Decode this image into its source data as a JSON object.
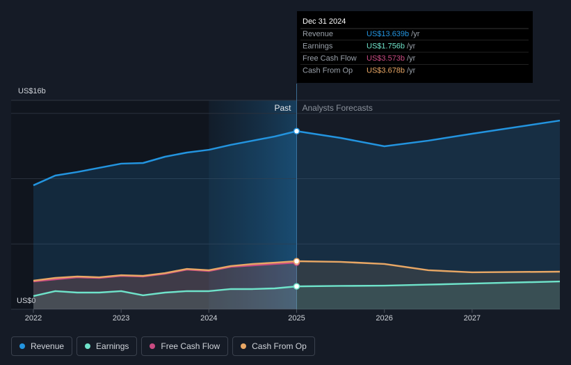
{
  "chart_data": {
    "type": "line",
    "y_label_top": "US$16b",
    "x": [
      2022,
      2022.25,
      2022.5,
      2022.75,
      2023,
      2023.25,
      2023.5,
      2023.75,
      2024,
      2024.25,
      2024.5,
      2024.75,
      2025,
      2025.5,
      2026,
      2026.5,
      2027,
      2028
    ],
    "series": [
      {
        "name": "Revenue",
        "color": "#2394df",
        "values": [
          9.49,
          10.24,
          10.51,
          10.83,
          11.15,
          11.2,
          11.68,
          12.0,
          12.21,
          12.59,
          12.91,
          13.23,
          13.639,
          13.12,
          12.48,
          12.91,
          13.44,
          14.45
        ]
      },
      {
        "name": "Earnings",
        "color": "#6fe3ca",
        "values": [
          1.01,
          1.39,
          1.28,
          1.28,
          1.39,
          1.07,
          1.28,
          1.39,
          1.39,
          1.55,
          1.55,
          1.6,
          1.756,
          1.79,
          1.81,
          1.89,
          1.97,
          2.13
        ]
      },
      {
        "name": "Free Cash Flow",
        "color": "#c94b82",
        "values": [
          2.13,
          2.29,
          2.45,
          2.4,
          2.56,
          2.51,
          2.72,
          3.04,
          2.93,
          3.25,
          3.36,
          3.47,
          3.573,
          null,
          null,
          null,
          null,
          null
        ]
      },
      {
        "name": "Cash From Op",
        "color": "#e8a765",
        "values": [
          2.19,
          2.4,
          2.51,
          2.45,
          2.61,
          2.56,
          2.77,
          3.09,
          2.99,
          3.31,
          3.47,
          3.57,
          3.678,
          3.63,
          3.47,
          2.99,
          2.83,
          2.88
        ]
      }
    ],
    "xlim": [
      2022,
      2028
    ],
    "xticks": [
      2022,
      2023,
      2024,
      2025,
      2026,
      2027
    ],
    "ylim": [
      0,
      16
    ],
    "yticks": [
      {
        "value": 0,
        "label": "US$0"
      },
      {
        "value": 16,
        "label": "US$16b"
      }
    ],
    "ygrid": [
      5,
      10,
      15
    ],
    "forecast_from": 2025,
    "past_label": "Past",
    "forecast_label": "Analysts Forecasts",
    "tooltip": {
      "date": "Dec 31 2024",
      "rows": [
        {
          "name": "Revenue",
          "value": "US$13.639b",
          "unit": "/yr"
        },
        {
          "name": "Earnings",
          "value": "US$1.756b",
          "unit": "/yr"
        },
        {
          "name": "Free Cash Flow",
          "value": "US$3.573b",
          "unit": "/yr"
        },
        {
          "name": "Cash From Op",
          "value": "US$3.678b",
          "unit": "/yr"
        }
      ]
    }
  }
}
